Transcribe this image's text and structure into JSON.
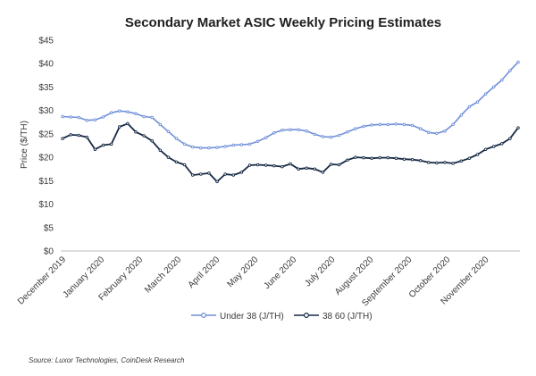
{
  "chart_data": {
    "type": "line",
    "title": "Secondary Market ASIC Weekly Pricing Estimates",
    "ylabel": "Price ($/TH)",
    "xlabel": "",
    "ylim": [
      0,
      45
    ],
    "yticks": [
      "$0",
      "$5",
      "$10",
      "$15",
      "$20",
      "$25",
      "$30",
      "$35",
      "$40",
      "$45"
    ],
    "x_tick_labels": [
      "December 2019",
      "January 2020",
      "February 2020",
      "March 2020",
      "April 2020",
      "May 2020",
      "June 2020",
      "July 2020",
      "August 2020",
      "September 2020",
      "October 2020",
      "November 2020"
    ],
    "legend_position": "bottom",
    "series": [
      {
        "name": "Under 38 (J/TH)",
        "color": "#6f8fd8",
        "values": [
          28.7,
          28.6,
          28.5,
          27.9,
          28.0,
          28.6,
          29.5,
          29.9,
          29.7,
          29.3,
          28.7,
          28.5,
          27.0,
          25.5,
          24.0,
          22.8,
          22.2,
          22.0,
          22.0,
          22.1,
          22.3,
          22.6,
          22.7,
          22.8,
          23.4,
          24.2,
          25.2,
          25.8,
          25.9,
          25.9,
          25.6,
          24.9,
          24.4,
          24.3,
          24.7,
          25.4,
          26.1,
          26.6,
          26.9,
          27.0,
          27.0,
          27.1,
          27.0,
          26.8,
          26.1,
          25.3,
          25.1,
          25.6,
          27.0,
          29.0,
          30.8,
          31.8,
          33.5,
          35.0,
          36.5,
          38.5,
          40.3
        ]
      },
      {
        "name": "38 60 (J/TH)",
        "color": "#172a45",
        "values": [
          24.0,
          24.8,
          24.7,
          24.3,
          21.7,
          22.6,
          22.8,
          26.5,
          27.2,
          25.4,
          24.6,
          23.5,
          21.5,
          20.0,
          19.0,
          18.4,
          16.2,
          16.4,
          16.6,
          14.8,
          16.4,
          16.2,
          16.8,
          18.3,
          18.4,
          18.3,
          18.2,
          18.0,
          18.6,
          17.5,
          17.7,
          17.5,
          16.8,
          18.5,
          18.4,
          19.4,
          20.0,
          19.9,
          19.8,
          19.9,
          19.9,
          19.8,
          19.6,
          19.5,
          19.3,
          18.9,
          18.8,
          18.9,
          18.7,
          19.2,
          19.8,
          20.6,
          21.7,
          22.3,
          22.9,
          24.0,
          26.3
        ]
      }
    ]
  },
  "source_text": "Source: Luxor Technologies, CoinDesk Research"
}
